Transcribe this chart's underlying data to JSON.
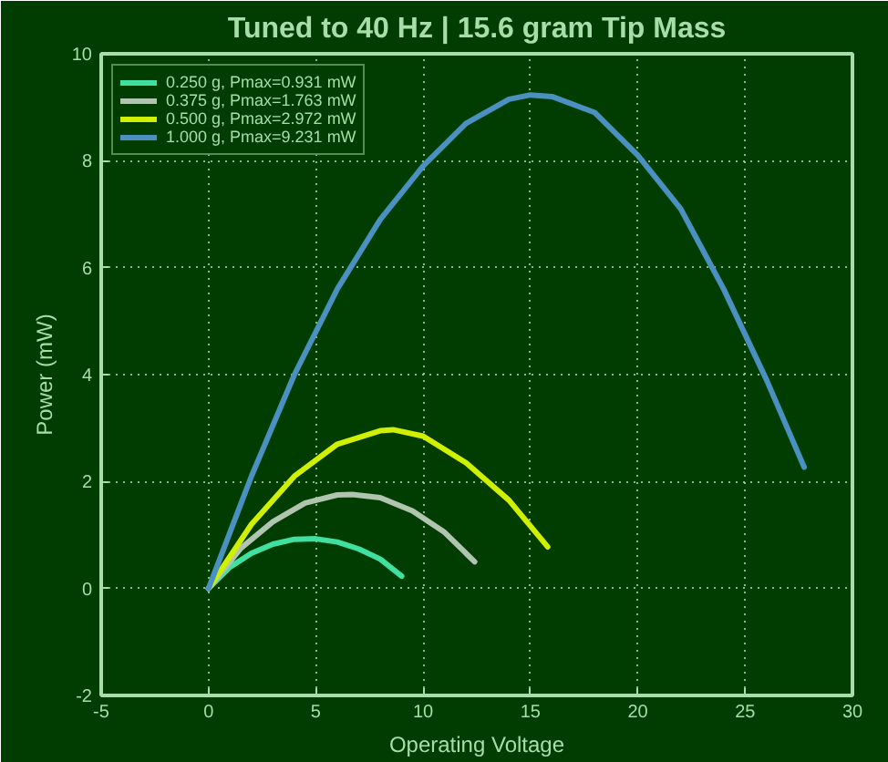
{
  "chart_data": {
    "type": "line",
    "title": "Tuned to 40 Hz | 15.6 gram Tip Mass",
    "xlabel": "Operating Voltage",
    "ylabel": "Power (mW)",
    "xlim": [
      -5,
      30
    ],
    "ylim": [
      -2,
      10
    ],
    "xticks": [
      -5,
      0,
      5,
      10,
      15,
      20,
      25,
      30
    ],
    "yticks": [
      -2,
      0,
      2,
      4,
      6,
      8,
      10
    ],
    "grid": true,
    "legend": "top left",
    "line_style": "solid",
    "series": [
      {
        "name": "0.250 g, Pmax=0.931 mW",
        "color": "#40e0a0",
        "x": [
          0,
          1,
          2,
          3,
          4,
          5,
          6,
          7,
          8,
          9
        ],
        "values": [
          0,
          0.4,
          0.66,
          0.83,
          0.92,
          0.93,
          0.87,
          0.74,
          0.55,
          0.23
        ]
      },
      {
        "name": "0.375 g, Pmax=1.763 mW",
        "color": "#b0c4b0",
        "x": [
          0,
          1.5,
          3,
          4.5,
          6,
          6.7,
          8,
          9.5,
          11,
          12.4
        ],
        "values": [
          0,
          0.75,
          1.25,
          1.6,
          1.75,
          1.76,
          1.7,
          1.45,
          1.05,
          0.5
        ]
      },
      {
        "name": "0.500 g, Pmax=2.972 mW",
        "color": "#d0f000",
        "x": [
          0,
          2,
          4,
          6,
          8,
          8.6,
          10,
          12,
          14,
          15.8
        ],
        "values": [
          0,
          1.2,
          2.1,
          2.7,
          2.95,
          2.97,
          2.85,
          2.35,
          1.65,
          0.78
        ]
      },
      {
        "name": "1.000 g, Pmax=9.231 mW",
        "color": "#4a90c0",
        "x": [
          0,
          2,
          4,
          6,
          8,
          10,
          12,
          14,
          15,
          16,
          18,
          20,
          22,
          24,
          26,
          27.75
        ],
        "values": [
          0,
          2.1,
          4.0,
          5.6,
          6.9,
          7.9,
          8.7,
          9.15,
          9.23,
          9.2,
          8.9,
          8.1,
          7.1,
          5.6,
          3.9,
          2.27
        ]
      }
    ]
  }
}
